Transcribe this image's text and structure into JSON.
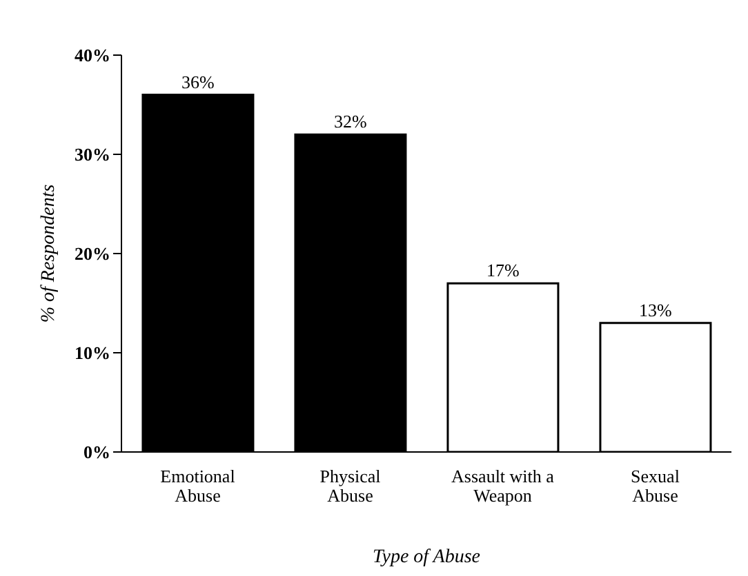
{
  "chart_data": {
    "type": "bar",
    "xlabel": "Type of Abuse",
    "ylabel": "% of Respondents",
    "categories": [
      "Emotional\nAbuse",
      "Physical\nAbuse",
      "Assault with a\nWeapon",
      "Sexual\nAbuse"
    ],
    "values": [
      36,
      32,
      17,
      13
    ],
    "value_labels": [
      "36%",
      "32%",
      "17%",
      "13%"
    ],
    "colors": [
      "#000000",
      "#000000",
      "#ffffff",
      "#ffffff"
    ],
    "ylim": [
      0,
      40
    ],
    "yticks": [
      {
        "value": 0,
        "label": "0%"
      },
      {
        "value": 10,
        "label": "10%"
      },
      {
        "value": 20,
        "label": "20%"
      },
      {
        "value": 30,
        "label": "30%"
      },
      {
        "value": 40,
        "label": "40%"
      }
    ],
    "grid": false,
    "legend": false
  }
}
